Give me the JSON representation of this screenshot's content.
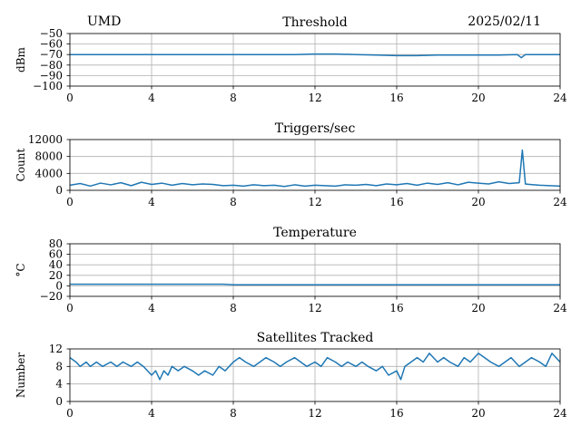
{
  "header": {
    "station": "UMD",
    "date": "2025/02/11"
  },
  "colors": {
    "line": "#1f77b4",
    "grid": "#b0b0b0",
    "axis": "#000000"
  },
  "chart_data": [
    {
      "id": "threshold",
      "type": "line",
      "title": "Threshold",
      "ylabel": "dBm",
      "xlim": [
        0,
        24
      ],
      "ylim": [
        -100,
        -50
      ],
      "xticks": [
        0,
        4,
        8,
        12,
        16,
        20,
        24
      ],
      "yticks": [
        -100,
        -90,
        -80,
        -70,
        -60,
        -50
      ],
      "grid": true,
      "series": [
        {
          "x": [
            0,
            2,
            4,
            6,
            8,
            10,
            11,
            12,
            13,
            14,
            15,
            16,
            17,
            18,
            19,
            20,
            21,
            21.9,
            22.1,
            22.3,
            23,
            24
          ],
          "y": [
            -70,
            -70,
            -70,
            -70,
            -70,
            -70,
            -70,
            -69.5,
            -69.5,
            -70,
            -70.5,
            -71,
            -71,
            -70.5,
            -70.5,
            -70.5,
            -70.5,
            -70,
            -73,
            -70,
            -70,
            -70
          ]
        }
      ]
    },
    {
      "id": "triggers",
      "type": "line",
      "title": "Triggers/sec",
      "ylabel": "Count",
      "xlim": [
        0,
        24
      ],
      "ylim": [
        0,
        12000
      ],
      "xticks": [
        0,
        4,
        8,
        12,
        16,
        20,
        24
      ],
      "yticks": [
        0,
        4000,
        8000,
        12000
      ],
      "grid": true,
      "series": [
        {
          "x": [
            0,
            0.5,
            1,
            1.5,
            2,
            2.5,
            3,
            3.5,
            4,
            4.5,
            5,
            5.5,
            6,
            6.5,
            7,
            7.5,
            8,
            8.5,
            9,
            9.5,
            10,
            10.5,
            11,
            11.5,
            12,
            12.5,
            13,
            13.5,
            14,
            14.5,
            15,
            15.5,
            16,
            16.5,
            17,
            17.5,
            18,
            18.5,
            19,
            19.5,
            20,
            20.5,
            21,
            21.5,
            22,
            22.15,
            22.3,
            22.5,
            23,
            23.5,
            24
          ],
          "y": [
            1200,
            1600,
            1000,
            1700,
            1300,
            1800,
            1100,
            1900,
            1400,
            1700,
            1200,
            1600,
            1300,
            1500,
            1400,
            1100,
            1200,
            1000,
            1300,
            1100,
            1200,
            900,
            1300,
            1000,
            1200,
            1100,
            1000,
            1300,
            1200,
            1400,
            1100,
            1500,
            1300,
            1600,
            1200,
            1700,
            1400,
            1800,
            1300,
            1900,
            1700,
            1500,
            2000,
            1600,
            1800,
            9500,
            1500,
            1400,
            1200,
            1100,
            1000
          ]
        }
      ]
    },
    {
      "id": "temperature",
      "type": "line",
      "title": "Temperature",
      "ylabel": "°C",
      "xlim": [
        0,
        24
      ],
      "ylim": [
        -20,
        80
      ],
      "xticks": [
        0,
        4,
        8,
        12,
        16,
        20,
        24
      ],
      "yticks": [
        -20,
        0,
        20,
        40,
        60,
        80
      ],
      "grid": true,
      "series": [
        {
          "x": [
            0,
            4,
            7.5,
            8,
            12,
            16,
            20,
            24
          ],
          "y": [
            3,
            3,
            3,
            2,
            2,
            2,
            2,
            2
          ]
        }
      ]
    },
    {
      "id": "satellites",
      "type": "line",
      "title": "Satellites Tracked",
      "ylabel": "Number",
      "xlim": [
        0,
        24
      ],
      "ylim": [
        0,
        12
      ],
      "xticks": [
        0,
        4,
        8,
        12,
        16,
        20,
        24
      ],
      "yticks": [
        0,
        4,
        8,
        12
      ],
      "grid": true,
      "series": [
        {
          "x": [
            0,
            0.3,
            0.5,
            0.8,
            1,
            1.3,
            1.6,
            2,
            2.3,
            2.6,
            3,
            3.3,
            3.6,
            4,
            4.2,
            4.4,
            4.6,
            4.8,
            5,
            5.3,
            5.6,
            6,
            6.3,
            6.6,
            7,
            7.3,
            7.6,
            8,
            8.3,
            8.6,
            9,
            9.3,
            9.6,
            10,
            10.3,
            10.6,
            11,
            11.3,
            11.6,
            12,
            12.3,
            12.6,
            13,
            13.3,
            13.6,
            14,
            14.3,
            14.6,
            15,
            15.3,
            15.6,
            16,
            16.2,
            16.4,
            16.7,
            17,
            17.3,
            17.6,
            18,
            18.3,
            18.6,
            19,
            19.3,
            19.6,
            20,
            20.3,
            20.6,
            21,
            21.3,
            21.6,
            22,
            22.3,
            22.6,
            23,
            23.3,
            23.6,
            24
          ],
          "y": [
            10,
            9,
            8,
            9,
            8,
            9,
            8,
            9,
            8,
            9,
            8,
            9,
            8,
            6,
            7,
            5,
            7,
            6,
            8,
            7,
            8,
            7,
            6,
            7,
            6,
            8,
            7,
            9,
            10,
            9,
            8,
            9,
            10,
            9,
            8,
            9,
            10,
            9,
            8,
            9,
            8,
            10,
            9,
            8,
            9,
            8,
            9,
            8,
            7,
            8,
            6,
            7,
            5,
            8,
            9,
            10,
            9,
            11,
            9,
            10,
            9,
            8,
            10,
            9,
            11,
            10,
            9,
            8,
            9,
            10,
            8,
            9,
            10,
            9,
            8,
            11,
            9
          ]
        }
      ]
    }
  ]
}
